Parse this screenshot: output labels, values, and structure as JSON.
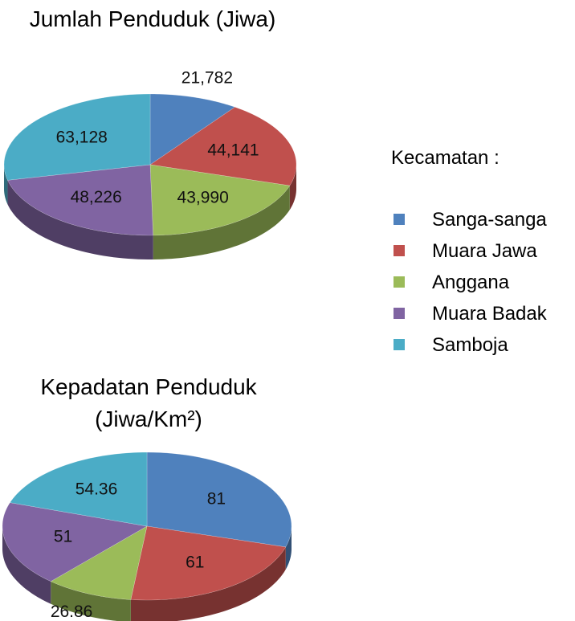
{
  "chart_data": [
    {
      "type": "pie3d",
      "title": "Jumlah Penduduk (Jiwa)",
      "categories": [
        "Sanga-sanga",
        "Muara Jawa",
        "Anggana",
        "Muara Badak",
        "Samboja"
      ],
      "values": [
        21782,
        44141,
        43990,
        48226,
        63128
      ],
      "value_labels": [
        "21,782",
        "44,141",
        "43,990",
        "48,226",
        "63,128"
      ],
      "colors": [
        "#4f81bd",
        "#c0504d",
        "#9bbb59",
        "#8064a2",
        "#4bacc6"
      ],
      "legend_title": "Kecamatan :"
    },
    {
      "type": "pie3d",
      "title": "Kepadatan Penduduk (Jiwa/Km²)",
      "categories": [
        "Sanga-sanga",
        "Muara Jawa",
        "Anggana",
        "Muara Badak",
        "Samboja"
      ],
      "values": [
        81,
        61,
        26.86,
        51,
        54.36
      ],
      "colors": [
        "#4f81bd",
        "#c0504d",
        "#9bbb59",
        "#8064a2",
        "#4bacc6"
      ]
    }
  ]
}
